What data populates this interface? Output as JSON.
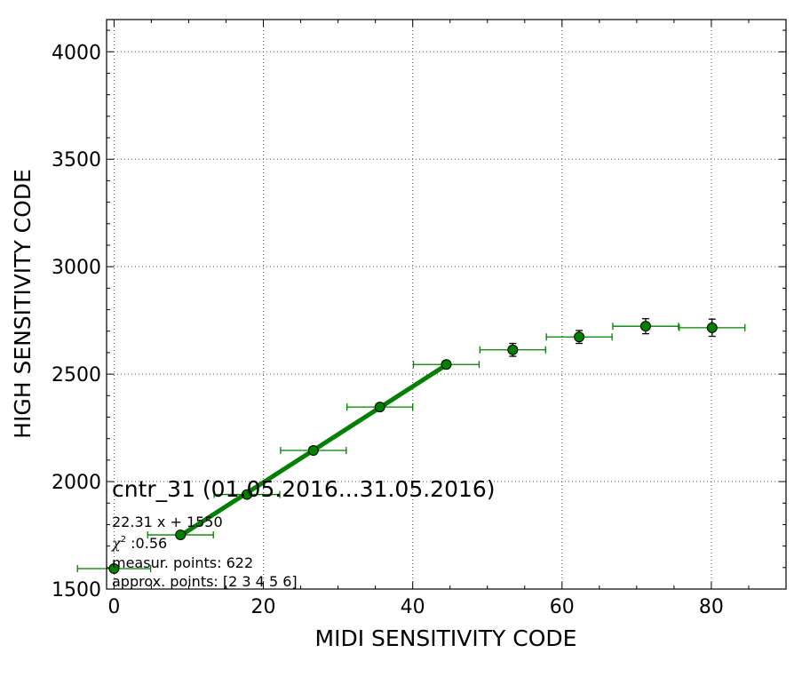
{
  "chart_data": {
    "type": "scatter",
    "title": "cntr_31 (01.05.2016...31.05.2016)",
    "xlabel": "MIDI SENSITIVITY CODE",
    "ylabel": "HIGH SENSITIVITY CODE",
    "xlim": [
      -1,
      90
    ],
    "ylim": [
      1500,
      4150
    ],
    "xticks": [
      0,
      20,
      40,
      60,
      80
    ],
    "yticks": [
      1500,
      2000,
      2500,
      3000,
      3500,
      4000
    ],
    "x_minor_step": 5,
    "y_minor_step": 100,
    "grid": true,
    "color": "#007f00",
    "series": [
      {
        "marker": "circle",
        "points": [
          {
            "x": 0,
            "y": 1595,
            "xerr": 4.9,
            "yerr": 0
          },
          {
            "x": 8.9,
            "y": 1752,
            "xerr": 4.4,
            "yerr": 8
          },
          {
            "x": 17.8,
            "y": 1940,
            "xerr": 4.4,
            "yerr": 8
          },
          {
            "x": 26.7,
            "y": 2145,
            "xerr": 4.4,
            "yerr": 10
          },
          {
            "x": 35.6,
            "y": 2347,
            "xerr": 4.4,
            "yerr": 10
          },
          {
            "x": 44.5,
            "y": 2545,
            "xerr": 4.4,
            "yerr": 15
          },
          {
            "x": 53.4,
            "y": 2613,
            "xerr": 4.4,
            "yerr": 30
          },
          {
            "x": 62.3,
            "y": 2673,
            "xerr": 4.4,
            "yerr": 30
          },
          {
            "x": 71.2,
            "y": 2723,
            "xerr": 4.4,
            "yerr": 35
          },
          {
            "x": 80.1,
            "y": 2716,
            "xerr": 4.4,
            "yerr": 40
          }
        ]
      }
    ],
    "fit": {
      "slope": 22.31,
      "intercept": 1550,
      "x_range": [
        8.9,
        44.5
      ]
    },
    "annotations": {
      "equation": "22.31 x + 1550",
      "chi2_symbol": "χ",
      "chi2_power": "2",
      "chi2_value": " :0.56",
      "measur_points": "measur. points: 622",
      "approx_points": "approx. points: [2 3 4 5 6]"
    }
  }
}
